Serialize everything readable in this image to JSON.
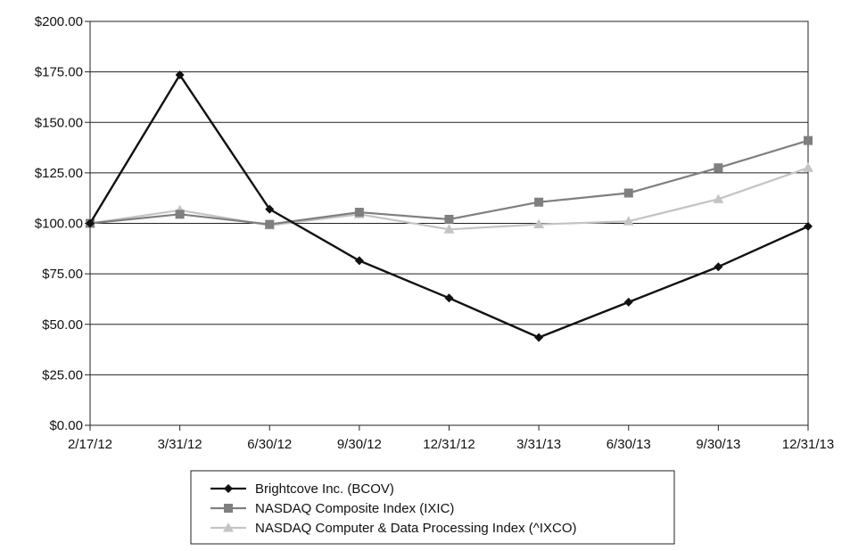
{
  "chart_data": {
    "type": "line",
    "categories": [
      "2/17/12",
      "3/31/12",
      "6/30/12",
      "9/30/12",
      "12/31/12",
      "3/31/13",
      "6/30/13",
      "9/30/13",
      "12/31/13"
    ],
    "ylim": [
      0,
      200
    ],
    "yticks": [
      0,
      25,
      50,
      75,
      100,
      125,
      150,
      175,
      200
    ],
    "ytick_labels": [
      "$0.00",
      "$25.00",
      "$50.00",
      "$75.00",
      "$100.00",
      "$125.00",
      "$150.00",
      "$175.00",
      "$200.00"
    ],
    "grid": true,
    "legend_position": "bottom",
    "series": [
      {
        "name": "Brightcove Inc. (BCOV)",
        "marker": "diamond",
        "color": "#111111",
        "values": [
          100,
          173.5,
          107,
          81.5,
          63,
          43.5,
          61,
          78.5,
          98.5
        ]
      },
      {
        "name": "NASDAQ Composite Index (IXIC)",
        "marker": "square",
        "color": "#7f7f7f",
        "values": [
          100,
          104.5,
          99.5,
          105.5,
          102,
          110.5,
          115,
          127.5,
          141
        ]
      },
      {
        "name": "NASDAQ Computer & Data Processing Index (^IXCO)",
        "marker": "triangle",
        "color": "#c4c4c4",
        "values": [
          100,
          106.5,
          99,
          104.5,
          97,
          99.5,
          101,
          112,
          127.5
        ]
      }
    ]
  }
}
